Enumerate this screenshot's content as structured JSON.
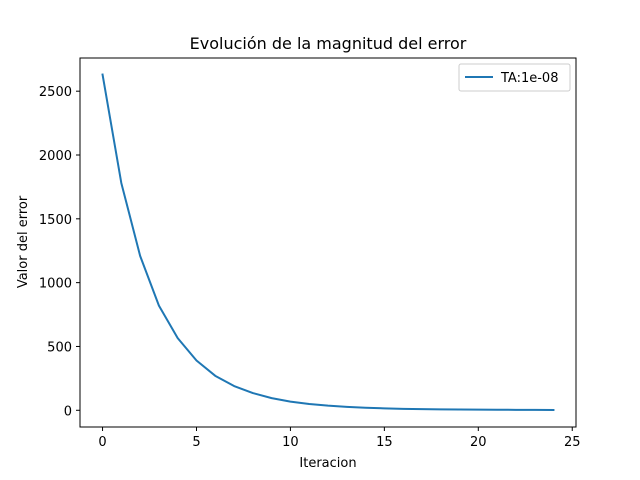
{
  "chart_data": {
    "type": "line",
    "title": "Evolución de la magnitud del error",
    "xlabel": "Iteracion",
    "ylabel": "Valor del error",
    "xlim": [
      -1.2,
      25.2
    ],
    "ylim": [
      -131,
      2760
    ],
    "x_ticks": [
      0,
      5,
      10,
      15,
      20,
      25
    ],
    "y_ticks": [
      0,
      500,
      1000,
      1500,
      2000,
      2500
    ],
    "grid": false,
    "legend_position": "top-right",
    "series": [
      {
        "name": "TA:1e-08",
        "color": "#1f77b4",
        "x": [
          0,
          1,
          2,
          3,
          4,
          5,
          6,
          7,
          8,
          9,
          10,
          11,
          12,
          13,
          14,
          15,
          16,
          17,
          18,
          19,
          20,
          21,
          22,
          23,
          24
        ],
        "y": [
          2630,
          1780,
          1210,
          820,
          565,
          390,
          270,
          190,
          135,
          95,
          68,
          49,
          36,
          27,
          20,
          15,
          11,
          9,
          7,
          6,
          5,
          4,
          3.5,
          3,
          2.5
        ]
      }
    ]
  }
}
